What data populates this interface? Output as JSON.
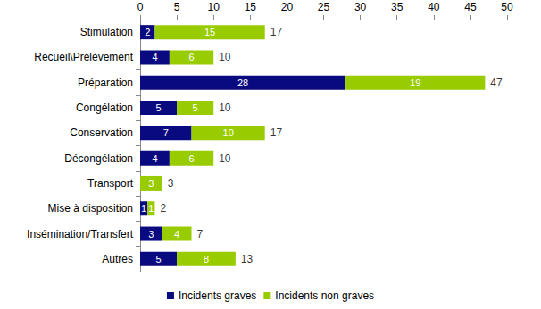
{
  "chart_data": {
    "type": "bar",
    "orientation": "horizontal",
    "stacked": true,
    "data_labels": true,
    "grid": false,
    "legend": "bottom",
    "categories": [
      "Stimulation",
      "Recueil\\Prélèvement",
      "Préparation",
      "Congélation",
      "Conservation",
      "Décongélation",
      "Transport",
      "Mise à disposition",
      "Insémination/Transfert",
      "Autres"
    ],
    "series": [
      {
        "name": "Incidents graves",
        "color": "#0a0a80",
        "values": [
          2,
          4,
          28,
          5,
          7,
          4,
          0,
          1,
          3,
          5
        ]
      },
      {
        "name": "Incidents non graves",
        "color": "#99cc00",
        "values": [
          15,
          6,
          19,
          5,
          10,
          6,
          3,
          1,
          4,
          8
        ]
      }
    ],
    "totals": [
      17,
      10,
      47,
      10,
      17,
      10,
      3,
      2,
      7,
      13
    ],
    "xlim": [
      0,
      50
    ],
    "xticks": [
      0,
      5,
      10,
      15,
      20,
      25,
      30,
      35,
      40,
      45,
      50
    ]
  }
}
